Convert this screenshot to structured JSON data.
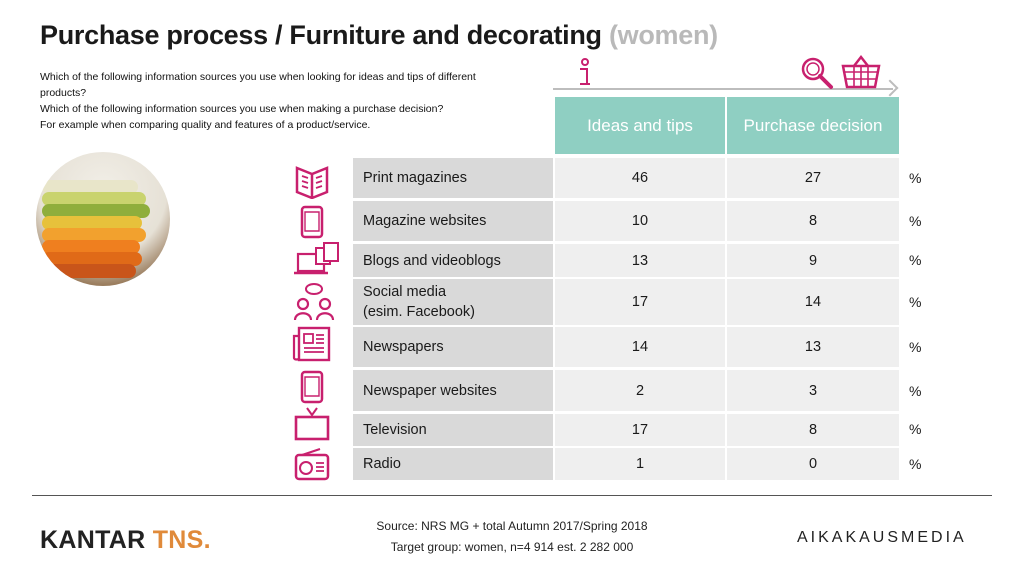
{
  "title": {
    "main": "Purchase process / Furniture and decorating",
    "sub": "(women)"
  },
  "questions": [
    "Which of the following information sources you use when looking for ideas and tips of different products?",
    "Which of the following information sources you use when making a purchase decision?",
    "For example when comparing quality and features of a product/service."
  ],
  "colors": {
    "accent_pink": "#c8206e",
    "header_teal": "#8fcfc2",
    "label_gray": "#d9d9d9",
    "value_gray": "#efefef",
    "kantar_accent": "#e08a3a"
  },
  "header_icons": [
    "info-icon",
    "search-magnifier-icon",
    "shopping-basket-icon"
  ],
  "columns": {
    "ideas": "Ideas and tips",
    "purchase": "Purchase decision"
  },
  "table": {
    "unit": "%",
    "rows": [
      {
        "label": "Print magazines",
        "icon": "open-magazine-icon",
        "ideas": "46",
        "purchase": "27"
      },
      {
        "label": "Magazine websites",
        "icon": "tablet-icon",
        "ideas": "10",
        "purchase": "8"
      },
      {
        "label": "Blogs and videoblogs",
        "icon": "laptop-devices-icon",
        "ideas": "13",
        "purchase": "9"
      },
      {
        "label": "Social media (esim. Facebook)",
        "label_line1": "Social media",
        "label_line2": "(esim. Facebook)",
        "icon": "social-people-icon",
        "ideas": "17",
        "purchase": "14"
      },
      {
        "label": "Newspapers",
        "icon": "newspaper-icon",
        "ideas": "14",
        "purchase": "13"
      },
      {
        "label": "Newspaper websites",
        "icon": "tablet-icon",
        "ideas": "2",
        "purchase": "3"
      },
      {
        "label": "Television",
        "icon": "television-icon",
        "ideas": "17",
        "purchase": "8"
      },
      {
        "label": "Radio",
        "icon": "radio-icon",
        "ideas": "1",
        "purchase": "0"
      }
    ]
  },
  "source": {
    "line1": "Source: NRS MG + total Autumn 2017/Spring 2018",
    "line2": "Target group: women, n=4 914 est. 2 282 000"
  },
  "logos": {
    "left_main": "KANTAR ",
    "left_accent": "TNS.",
    "right": "AIKAKAUSMEDIA"
  }
}
